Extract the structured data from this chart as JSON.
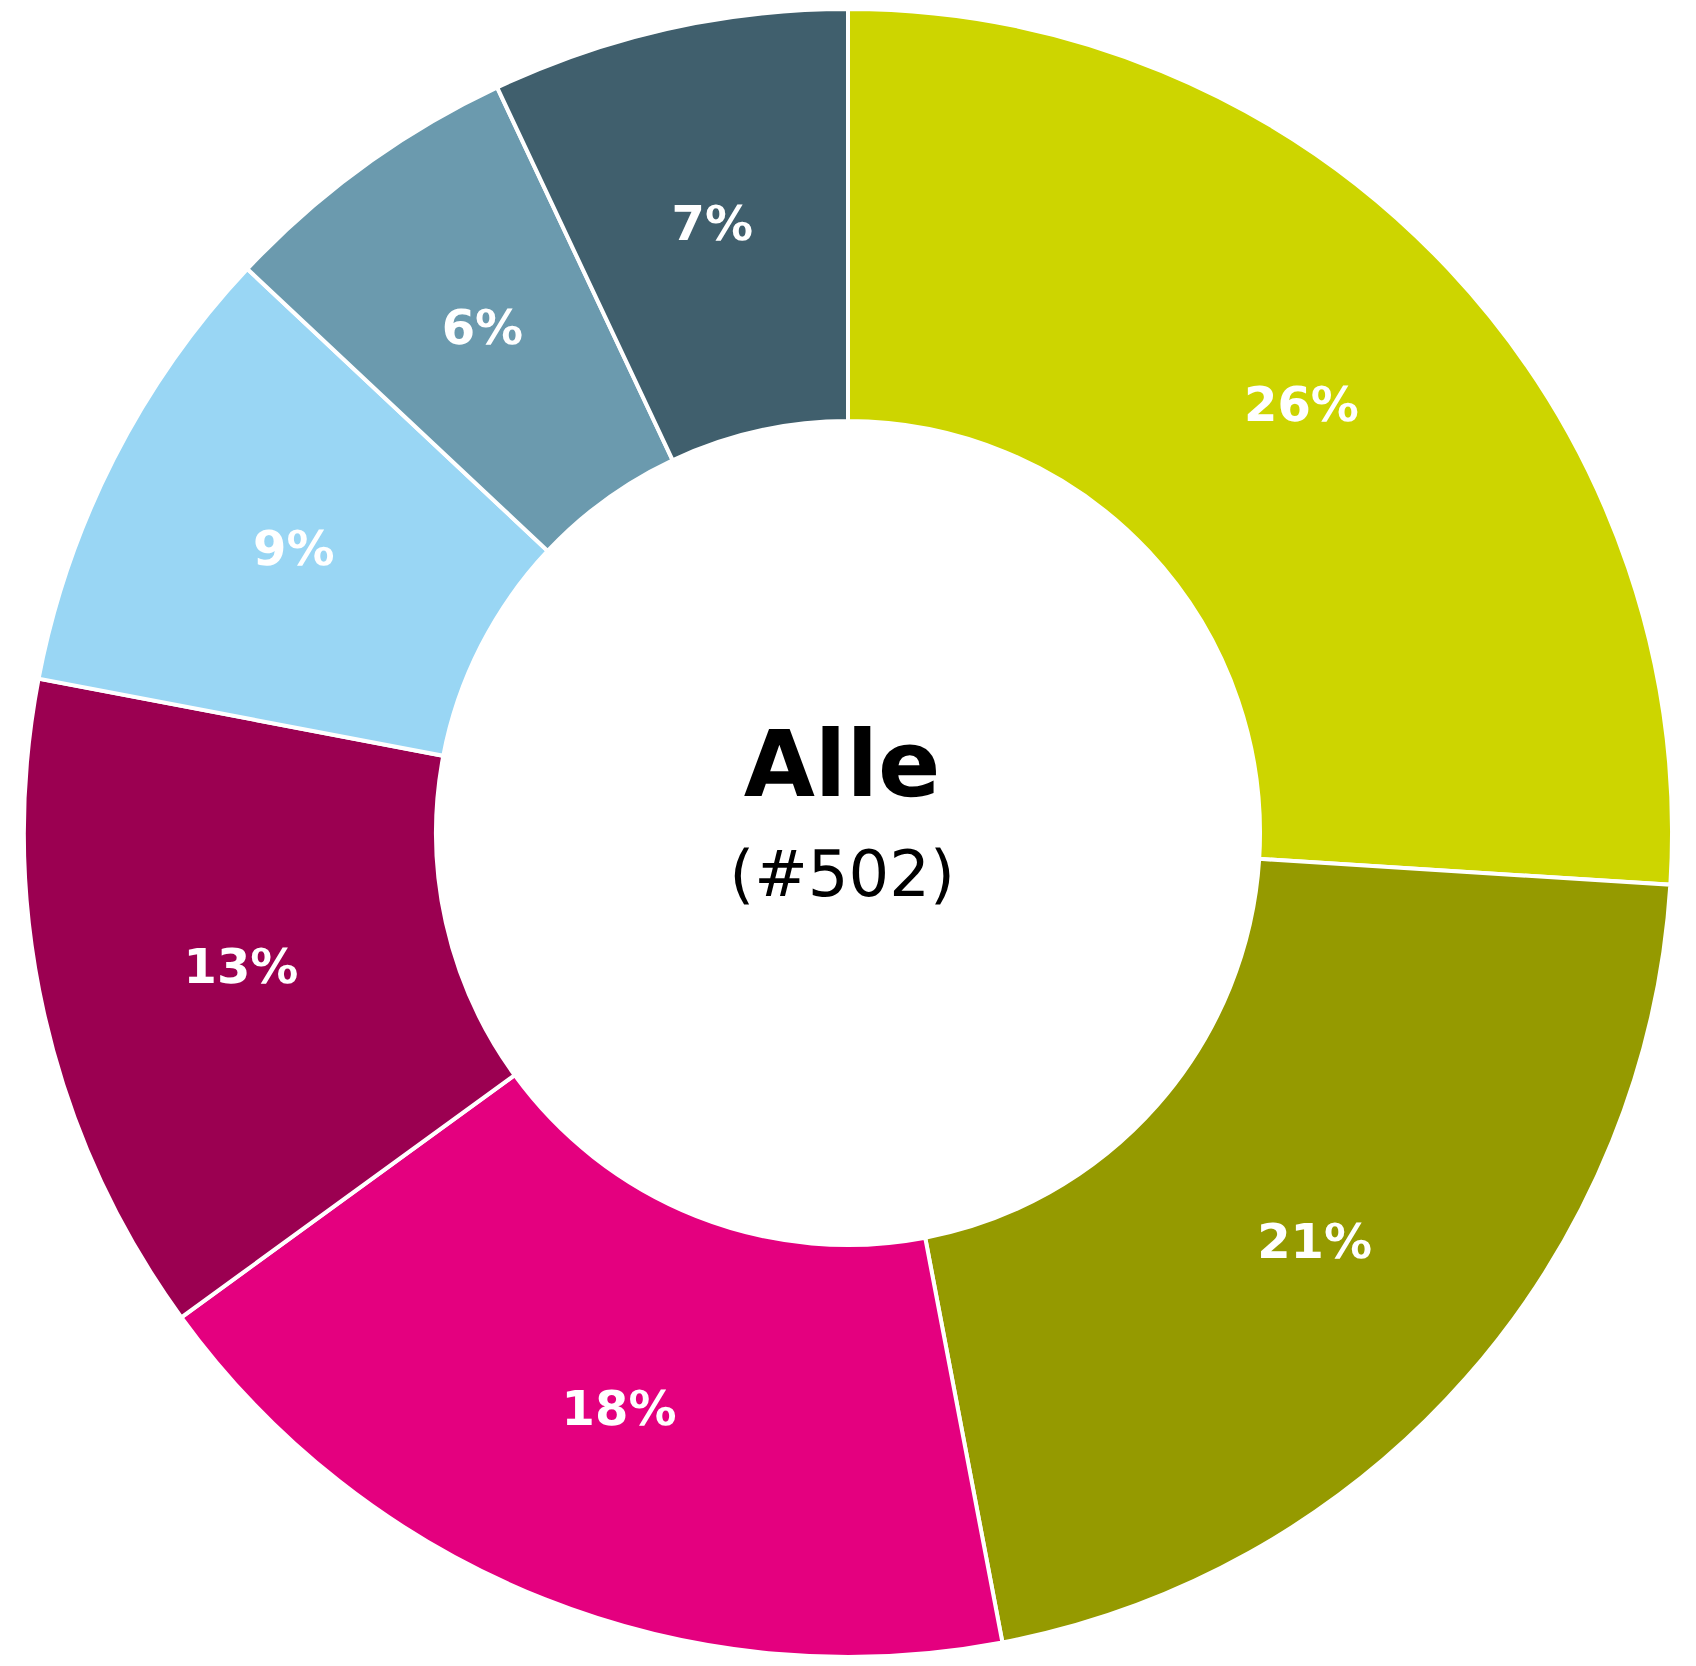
{
  "chart_data": {
    "type": "donut",
    "title": "Alle",
    "subtitle": "(#502)",
    "categories": [
      null,
      null,
      null,
      null,
      null,
      null,
      null
    ],
    "values": [
      26,
      21,
      18,
      13,
      9,
      6,
      7
    ],
    "colors": [
      "#cdd500",
      "#959a00",
      "#e4007f",
      "#9b0051",
      "#99d6f4",
      "#6b9aae",
      "#405f6d"
    ],
    "value_labels": [
      "26%",
      "21%",
      "18%",
      "13%",
      "9%",
      "6%",
      "7%"
    ]
  }
}
